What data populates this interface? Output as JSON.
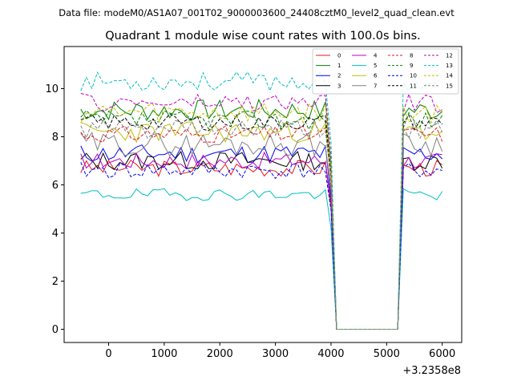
{
  "chart_data": {
    "type": "line",
    "suptitle": "Data file: modeM0/AS1A07_001T02_9000003600_24408cztM0_level2_quad_clean.evt",
    "title": "Quadrant 1 module wise count rates with 100.0s bins.",
    "xlabel": "",
    "ylabel": "",
    "x_offset_label": "+3.2358e8",
    "xlim": [
      -800,
      6350
    ],
    "ylim": [
      -0.55,
      11.75
    ],
    "x_ticks": [
      0,
      1000,
      2000,
      3000,
      4000,
      5000,
      6000
    ],
    "x_tick_labels": [
      "0",
      "1000",
      "2000",
      "3000",
      "4000",
      "5000",
      "6000"
    ],
    "y_ticks": [
      0,
      2,
      4,
      6,
      8,
      10
    ],
    "y_tick_labels": [
      "0",
      "2",
      "4",
      "6",
      "8",
      "10"
    ],
    "legend_position": "top-right",
    "x_start": -500,
    "x_step": 100,
    "gap": [
      4100,
      5200
    ],
    "series": [
      {
        "name": "0",
        "color": "#e41a1c",
        "dash": false,
        "level": 6.7,
        "amp": 0.35,
        "seed": 3
      },
      {
        "name": "1",
        "color": "#008000",
        "dash": false,
        "level": 9.1,
        "amp": 0.45,
        "seed": 7
      },
      {
        "name": "2",
        "color": "#0000ff",
        "dash": false,
        "level": 7.3,
        "amp": 0.4,
        "seed": 11
      },
      {
        "name": "3",
        "color": "#000000",
        "dash": false,
        "level": 7.0,
        "amp": 0.4,
        "seed": 13
      },
      {
        "name": "4",
        "color": "#bf00bf",
        "dash": false,
        "level": 7.0,
        "amp": 0.35,
        "seed": 17
      },
      {
        "name": "5",
        "color": "#00bfbf",
        "dash": false,
        "level": 5.6,
        "amp": 0.25,
        "seed": 19
      },
      {
        "name": "6",
        "color": "#bfbf00",
        "dash": false,
        "level": 8.2,
        "amp": 0.45,
        "seed": 23
      },
      {
        "name": "7",
        "color": "#808080",
        "dash": false,
        "level": 7.7,
        "amp": 0.5,
        "seed": 29
      },
      {
        "name": "8",
        "color": "#e41a1c",
        "dash": true,
        "level": 8.1,
        "amp": 0.35,
        "seed": 31
      },
      {
        "name": "9",
        "color": "#008000",
        "dash": true,
        "level": 8.7,
        "amp": 0.4,
        "seed": 37
      },
      {
        "name": "10",
        "color": "#0000ff",
        "dash": true,
        "level": 6.6,
        "amp": 0.35,
        "seed": 41
      },
      {
        "name": "11",
        "color": "#000000",
        "dash": true,
        "level": 8.6,
        "amp": 0.35,
        "seed": 43
      },
      {
        "name": "12",
        "color": "#bf00bf",
        "dash": true,
        "level": 9.4,
        "amp": 0.4,
        "seed": 47
      },
      {
        "name": "13",
        "color": "#00bfbf",
        "dash": true,
        "level": 10.3,
        "amp": 0.4,
        "seed": 53
      },
      {
        "name": "14",
        "color": "#bfbf00",
        "dash": true,
        "level": 9.0,
        "amp": 0.45,
        "seed": 59
      },
      {
        "name": "15",
        "color": "#808080",
        "dash": true,
        "level": 8.3,
        "amp": 0.4,
        "seed": 61
      }
    ]
  }
}
